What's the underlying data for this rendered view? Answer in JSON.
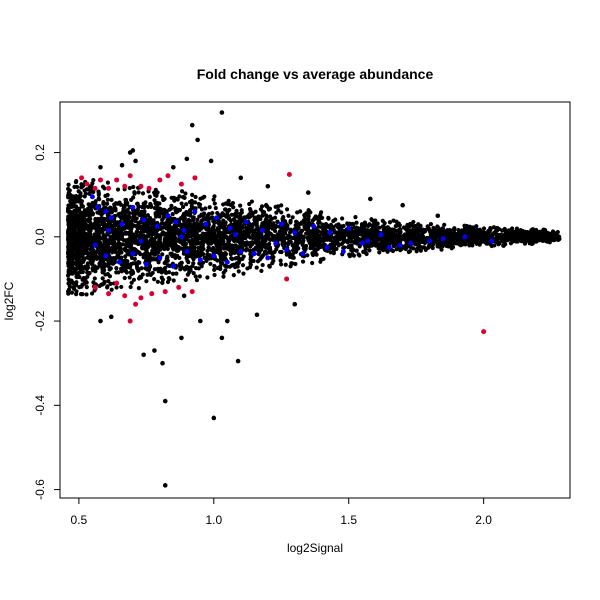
{
  "chart_data": {
    "type": "scatter",
    "title": "Fold change vs average abundance",
    "xlabel": "log2Signal",
    "ylabel": "log2FC",
    "xlim": [
      0.43,
      2.32
    ],
    "ylim": [
      -0.62,
      0.32
    ],
    "x_ticks": [
      0.5,
      1.0,
      1.5,
      2.0
    ],
    "x_tick_labels": [
      "0.5",
      "1.0",
      "1.5",
      "2.0"
    ],
    "y_ticks": [
      -0.6,
      -0.4,
      -0.2,
      0.0,
      0.2
    ],
    "y_tick_labels": [
      "-0.6",
      "-0.4",
      "-0.2",
      "0.0",
      "0.2"
    ],
    "grid": false,
    "legend": "none",
    "series": [
      {
        "color": "#000000",
        "cloud": {
          "x_range": [
            0.46,
            2.28
          ],
          "center_y": 0.0,
          "envelope_at_x": [
            [
              0.5,
              0.14
            ],
            [
              0.75,
              0.12
            ],
            [
              1.0,
              0.1
            ],
            [
              1.25,
              0.075
            ],
            [
              1.5,
              0.05
            ],
            [
              1.75,
              0.035
            ],
            [
              2.0,
              0.025
            ],
            [
              2.28,
              0.015
            ]
          ]
        },
        "values": [
          [
            0.92,
            0.265
          ],
          [
            1.03,
            0.295
          ],
          [
            0.94,
            0.23
          ],
          [
            0.82,
            -0.39
          ],
          [
            1.0,
            -0.43
          ],
          [
            0.82,
            -0.59
          ],
          [
            1.09,
            -0.295
          ],
          [
            0.78,
            -0.27
          ],
          [
            0.88,
            -0.24
          ],
          [
            1.03,
            -0.24
          ],
          [
            0.74,
            -0.28
          ],
          [
            0.7,
            0.205
          ],
          [
            0.69,
            0.2
          ],
          [
            0.66,
            0.17
          ],
          [
            0.58,
            0.165
          ],
          [
            0.99,
            0.18
          ],
          [
            1.1,
            0.14
          ],
          [
            1.2,
            0.12
          ],
          [
            1.35,
            0.105
          ],
          [
            1.58,
            0.09
          ],
          [
            1.7,
            0.075
          ],
          [
            1.83,
            0.05
          ],
          [
            2.28,
            -0.005
          ],
          [
            2.2,
            0.01
          ],
          [
            0.95,
            -0.2
          ],
          [
            1.16,
            -0.185
          ],
          [
            0.62,
            -0.19
          ],
          [
            0.89,
            -0.14
          ],
          [
            1.3,
            -0.16
          ],
          [
            0.71,
            0.18
          ],
          [
            0.85,
            0.165
          ],
          [
            0.9,
            0.185
          ],
          [
            0.58,
            -0.2
          ],
          [
            0.81,
            -0.3
          ],
          [
            1.05,
            -0.2
          ]
        ]
      },
      {
        "color": "#0000ff",
        "values": [
          [
            0.55,
            0.095
          ],
          [
            0.57,
            0.07
          ],
          [
            0.6,
            0.06
          ],
          [
            0.62,
            0.045
          ],
          [
            0.66,
            0.03
          ],
          [
            0.7,
            0.07
          ],
          [
            0.74,
            0.04
          ],
          [
            0.79,
            0.025
          ],
          [
            0.83,
            0.05
          ],
          [
            0.86,
            0.035
          ],
          [
            0.89,
            0.015
          ],
          [
            0.93,
            0.06
          ],
          [
            0.97,
            0.03
          ],
          [
            1.01,
            0.045
          ],
          [
            1.06,
            0.02
          ],
          [
            1.12,
            0.035
          ],
          [
            1.18,
            0.015
          ],
          [
            1.25,
            0.03
          ],
          [
            1.3,
            0.01
          ],
          [
            1.37,
            0.025
          ],
          [
            1.43,
            0.01
          ],
          [
            1.5,
            0.02
          ],
          [
            1.57,
            -0.01
          ],
          [
            1.62,
            0.005
          ],
          [
            1.69,
            -0.02
          ],
          [
            0.56,
            -0.02
          ],
          [
            0.6,
            -0.045
          ],
          [
            0.65,
            -0.06
          ],
          [
            0.7,
            -0.04
          ],
          [
            0.75,
            -0.065
          ],
          [
            0.8,
            -0.05
          ],
          [
            0.85,
            -0.07
          ],
          [
            0.9,
            -0.035
          ],
          [
            0.95,
            -0.055
          ],
          [
            1.0,
            -0.045
          ],
          [
            1.05,
            -0.06
          ],
          [
            1.1,
            -0.035
          ],
          [
            1.15,
            -0.04
          ],
          [
            1.2,
            -0.05
          ],
          [
            1.27,
            -0.03
          ],
          [
            1.33,
            -0.04
          ],
          [
            1.42,
            -0.025
          ],
          [
            1.48,
            -0.035
          ],
          [
            1.55,
            -0.015
          ],
          [
            1.65,
            -0.025
          ],
          [
            1.73,
            -0.015
          ],
          [
            1.8,
            -0.01
          ],
          [
            1.85,
            -0.005
          ],
          [
            1.93,
            0.0
          ],
          [
            2.03,
            -0.01
          ],
          [
            0.61,
            0.015
          ],
          [
            0.73,
            -0.01
          ],
          [
            0.88,
            0.0
          ],
          [
            1.08,
            0.005
          ],
          [
            1.23,
            -0.015
          ]
        ]
      },
      {
        "color": "#dd0033",
        "values": [
          [
            0.51,
            0.14
          ],
          [
            0.53,
            0.125
          ],
          [
            0.56,
            0.115
          ],
          [
            0.58,
            0.135
          ],
          [
            0.61,
            0.115
          ],
          [
            0.64,
            0.135
          ],
          [
            0.67,
            0.12
          ],
          [
            0.69,
            0.145
          ],
          [
            0.73,
            0.12
          ],
          [
            0.76,
            0.115
          ],
          [
            0.8,
            0.135
          ],
          [
            0.83,
            0.145
          ],
          [
            0.88,
            0.125
          ],
          [
            0.93,
            0.14
          ],
          [
            1.28,
            0.148
          ],
          [
            0.56,
            -0.12
          ],
          [
            0.61,
            -0.135
          ],
          [
            0.64,
            -0.11
          ],
          [
            0.67,
            -0.14
          ],
          [
            0.71,
            -0.16
          ],
          [
            0.73,
            -0.145
          ],
          [
            0.77,
            -0.135
          ],
          [
            0.82,
            -0.13
          ],
          [
            0.87,
            -0.12
          ],
          [
            0.92,
            -0.13
          ],
          [
            0.69,
            -0.2
          ],
          [
            1.27,
            -0.1
          ],
          [
            2.0,
            -0.225
          ]
        ]
      }
    ]
  }
}
